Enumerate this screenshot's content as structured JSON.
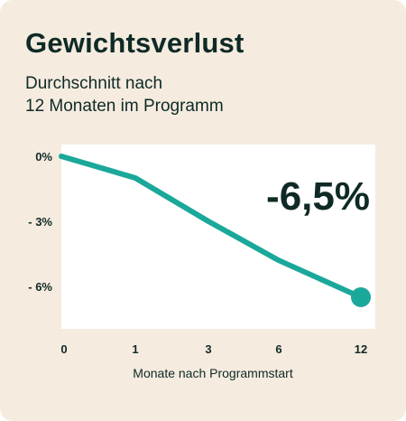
{
  "title": "Gewichtsverlust",
  "subtitle_lines": [
    "Durchschnitt nach",
    "12 Monaten im Programm"
  ],
  "highlight_value": "-6,5%",
  "colors": {
    "background": "#f5ebdf",
    "plot_area": "#ffffff",
    "line": "#1aa89a",
    "text": "#0f2a26"
  },
  "chart_data": {
    "type": "line",
    "title": "Gewichtsverlust",
    "xlabel": "Monate nach Programmstart",
    "ylabel": "",
    "categories": [
      "0",
      "1",
      "3",
      "6",
      "12"
    ],
    "yticks": [
      "0%",
      "- 3%",
      "- 6%"
    ],
    "ylim": [
      -7.5,
      0.3
    ],
    "series": [
      {
        "values": [
          0,
          -1,
          -3,
          -4.8,
          -6.5
        ]
      }
    ],
    "endpoint_marker": true,
    "grid": false
  }
}
